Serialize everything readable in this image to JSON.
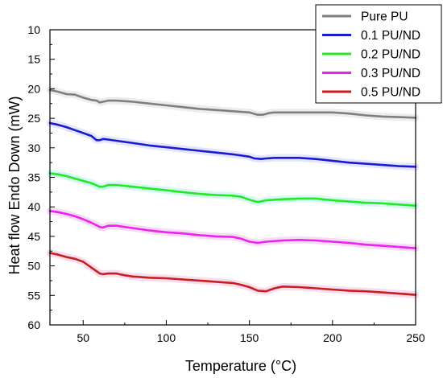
{
  "chart_data": {
    "type": "line",
    "xlabel": "Temperature (°C)",
    "ylabel": "Heat flow Endo Down (mW)",
    "xlim": [
      30,
      250
    ],
    "ylim": [
      10,
      60
    ],
    "y_inverted": true,
    "x_ticks": [
      50,
      100,
      150,
      200,
      250
    ],
    "x_tick_labels": [
      "50",
      "100",
      "150",
      "200",
      "250"
    ],
    "y_ticks": [
      10,
      15,
      20,
      25,
      30,
      35,
      40,
      45,
      50,
      55,
      60
    ],
    "y_tick_labels": [
      "10",
      "15",
      "20",
      "25",
      "30",
      "35",
      "40",
      "45",
      "50",
      "55",
      "60"
    ],
    "grid": false,
    "legend_position": "top-right",
    "series": [
      {
        "name": "Pure PU",
        "color": "#7f7f7f",
        "x": [
          30,
          35,
          40,
          45,
          50,
          55,
          58,
          60,
          62,
          65,
          70,
          75,
          80,
          90,
          100,
          110,
          120,
          130,
          140,
          150,
          155,
          158,
          162,
          165,
          170,
          180,
          190,
          200,
          210,
          220,
          230,
          240,
          250
        ],
        "y": [
          20.2,
          20.5,
          20.9,
          21.0,
          21.5,
          21.9,
          22.0,
          22.3,
          22.2,
          22.0,
          22.0,
          22.1,
          22.2,
          22.5,
          22.8,
          23.1,
          23.4,
          23.6,
          23.8,
          24.0,
          24.4,
          24.4,
          24.1,
          24.0,
          24.0,
          24.0,
          24.0,
          24.0,
          24.2,
          24.5,
          24.7,
          24.8,
          24.9
        ]
      },
      {
        "name": "0.1 PU/ND",
        "color": "#1a1ad0",
        "x": [
          30,
          35,
          40,
          45,
          50,
          55,
          58,
          60,
          62,
          65,
          70,
          80,
          90,
          100,
          110,
          120,
          130,
          140,
          150,
          153,
          157,
          160,
          165,
          170,
          180,
          190,
          200,
          210,
          220,
          230,
          240,
          250
        ],
        "y": [
          25.8,
          26.1,
          26.5,
          27.0,
          27.5,
          28.0,
          28.7,
          28.7,
          28.5,
          28.6,
          28.8,
          29.2,
          29.6,
          29.9,
          30.2,
          30.5,
          30.8,
          31.1,
          31.5,
          31.8,
          31.9,
          31.8,
          31.7,
          31.7,
          31.7,
          31.9,
          32.2,
          32.5,
          32.7,
          32.9,
          33.1,
          33.2
        ]
      },
      {
        "name": "0.2 PU/ND",
        "color": "#22ea22",
        "x": [
          30,
          35,
          40,
          45,
          50,
          55,
          60,
          62,
          65,
          70,
          80,
          90,
          100,
          110,
          120,
          130,
          140,
          145,
          150,
          155,
          160,
          170,
          180,
          190,
          200,
          210,
          220,
          230,
          240,
          250
        ],
        "y": [
          34.3,
          34.5,
          34.8,
          35.2,
          35.6,
          36.0,
          36.6,
          36.6,
          36.3,
          36.3,
          36.6,
          36.9,
          37.2,
          37.5,
          37.8,
          38.0,
          38.1,
          38.3,
          38.8,
          39.2,
          38.9,
          38.7,
          38.6,
          38.6,
          38.9,
          39.1,
          39.3,
          39.4,
          39.6,
          39.8
        ]
      },
      {
        "name": "0.3 PU/ND",
        "color": "#ee22ee",
        "x": [
          30,
          35,
          40,
          45,
          50,
          55,
          60,
          62,
          65,
          70,
          80,
          90,
          100,
          110,
          120,
          130,
          140,
          145,
          150,
          155,
          160,
          170,
          180,
          190,
          200,
          210,
          220,
          230,
          240,
          250
        ],
        "y": [
          40.7,
          40.9,
          41.2,
          41.6,
          42.1,
          42.7,
          43.4,
          43.5,
          43.2,
          43.2,
          43.6,
          44.0,
          44.3,
          44.5,
          44.8,
          45.0,
          45.1,
          45.4,
          45.9,
          46.1,
          45.9,
          45.7,
          45.6,
          45.7,
          45.9,
          46.1,
          46.4,
          46.6,
          46.8,
          47.0
        ]
      },
      {
        "name": "0.5 PU/ND",
        "color": "#c81e1e",
        "x": [
          30,
          35,
          40,
          45,
          50,
          55,
          60,
          62,
          65,
          70,
          75,
          80,
          90,
          100,
          110,
          120,
          130,
          140,
          145,
          150,
          155,
          160,
          165,
          170,
          180,
          190,
          200,
          210,
          220,
          230,
          240,
          250
        ],
        "y": [
          47.8,
          48.1,
          48.5,
          48.8,
          49.3,
          50.3,
          51.3,
          51.4,
          51.3,
          51.3,
          51.6,
          51.8,
          52.0,
          52.1,
          52.3,
          52.5,
          52.7,
          52.9,
          53.2,
          53.6,
          54.2,
          54.3,
          53.8,
          53.5,
          53.6,
          53.8,
          54.0,
          54.2,
          54.3,
          54.5,
          54.7,
          54.9
        ]
      }
    ]
  }
}
